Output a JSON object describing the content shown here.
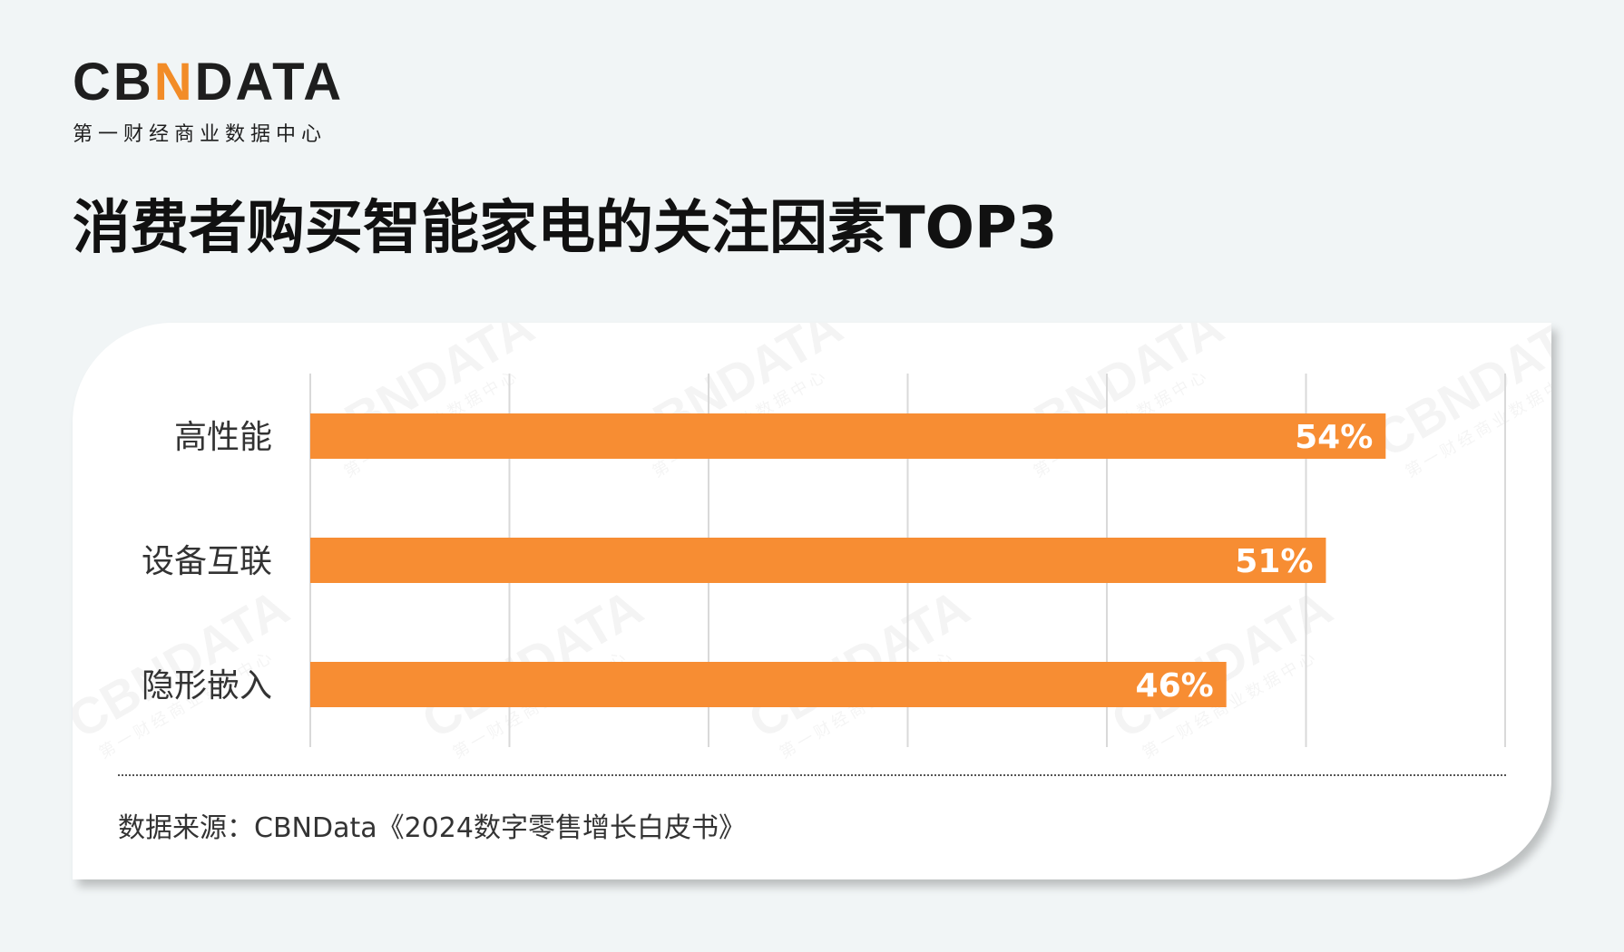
{
  "logo": {
    "part1": "CB",
    "part2": "N",
    "part3": "DATA",
    "subtitle": "第一财经商业数据中心"
  },
  "page_title": "消费者购买智能家电的关注因素TOP3",
  "source": "数据来源：CBNData《2024数字零售增长白皮书》",
  "colors": {
    "bar": "#f78d33",
    "grid": "#d9d9d9",
    "brand_accent": "#f28c28"
  },
  "chart_data": {
    "type": "bar",
    "orientation": "horizontal",
    "categories": [
      "高性能",
      "设备互联",
      "隐形嵌入"
    ],
    "values": [
      54,
      51,
      46
    ],
    "value_labels": [
      "54%",
      "51%",
      "46%"
    ],
    "xlim": [
      0,
      60
    ],
    "grid": true
  }
}
